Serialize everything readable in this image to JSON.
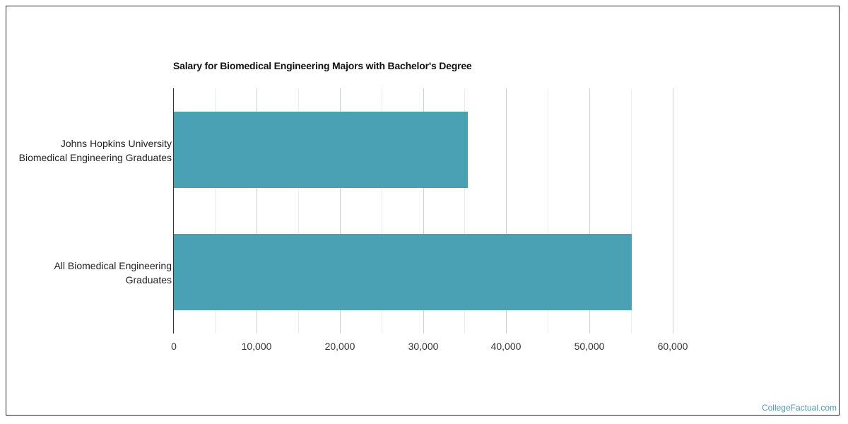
{
  "chart_data": {
    "type": "bar",
    "orientation": "horizontal",
    "title": "Salary for Biomedical Engineering Majors with Bachelor's Degree",
    "categories": [
      "Johns Hopkins University Biomedical Engineering Graduates",
      "All Biomedical Engineering Graduates"
    ],
    "category_lines": [
      [
        "Johns Hopkins University",
        "Biomedical Engineering Graduates"
      ],
      [
        "All Biomedical Engineering",
        "Graduates"
      ]
    ],
    "values": [
      35400,
      55100
    ],
    "xlabel": "",
    "ylabel": "",
    "xlim": [
      0,
      60000
    ],
    "xticks": [
      "0",
      "10,000",
      "20,000",
      "30,000",
      "40,000",
      "50,000",
      "60,000"
    ],
    "grid": true,
    "legend": null,
    "bar_color": "#4aa1b3"
  },
  "credit": "CollegeFactual.com"
}
